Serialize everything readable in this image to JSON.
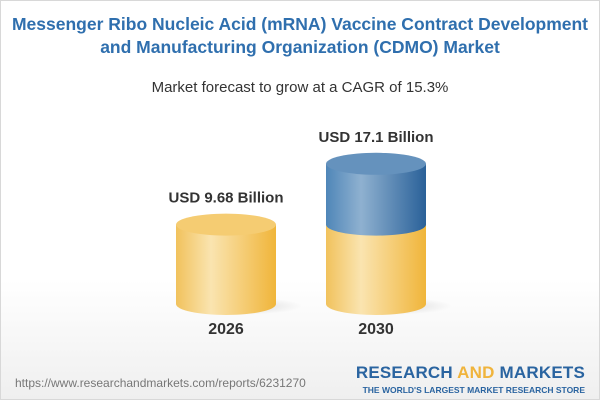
{
  "title_line1": "Messenger Ribo Nucleic Acid (mRNA) Vaccine Contract Development",
  "title_line2": "and Manufacturing Organization (CDMO) Market",
  "subtitle": "Market forecast to grow at a CAGR of 15.3%",
  "footer": {
    "url": "https://www.researchandmarkets.com/reports/6231270",
    "logo_part1": "RESEARCH ",
    "logo_part2": "AND",
    "logo_part3": " MARKETS",
    "logo_tagline": "THE WORLD'S LARGEST MARKET RESEARCH STORE"
  },
  "colors": {
    "title": "#2f6fae",
    "base": "#f2c35e",
    "growth": "#4a7fb0"
  },
  "chart_data": {
    "type": "bar",
    "style": "3d-cylinder",
    "categories": [
      "2026",
      "2030"
    ],
    "values": [
      9.68,
      17.1
    ],
    "data_labels": [
      "USD 9.68 Billion",
      "USD 17.1 Billion"
    ]
  }
}
